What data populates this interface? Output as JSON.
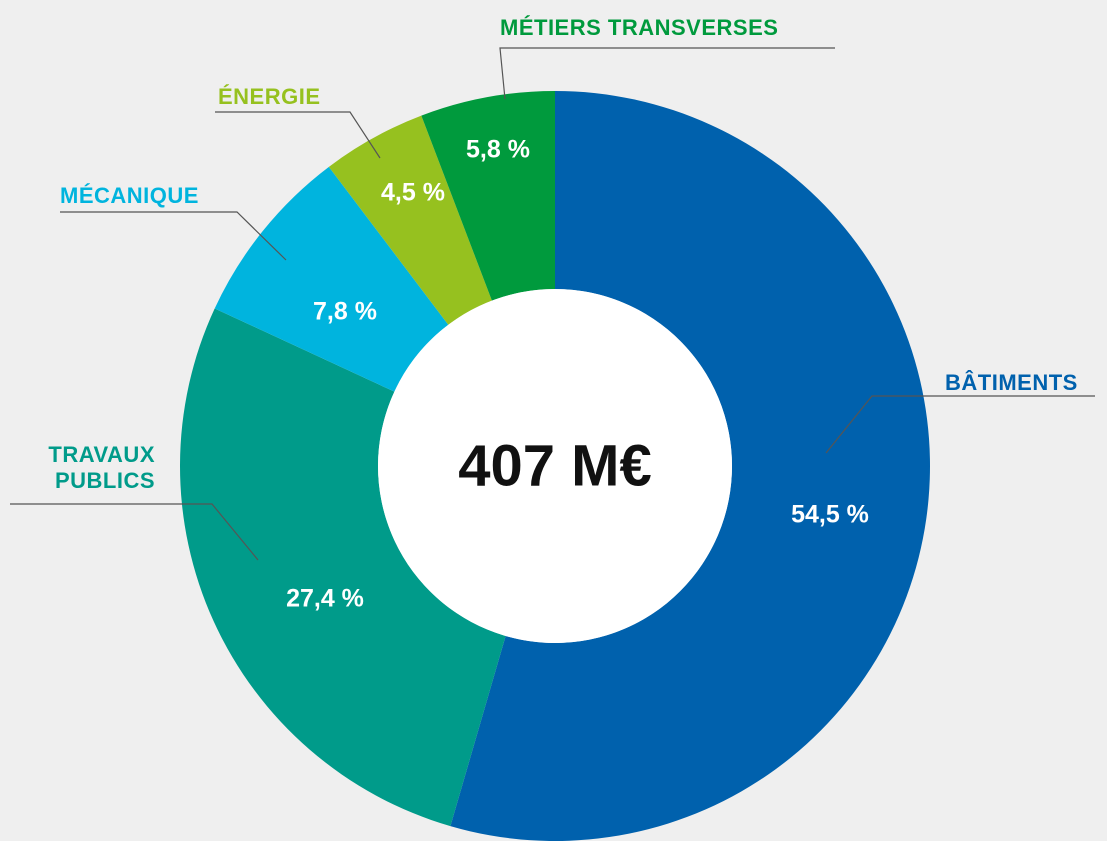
{
  "chart_data": {
    "type": "donut",
    "categories": [
      "BÂTIMENTS",
      "TRAVAUX PUBLICS",
      "MÉCANIQUE",
      "ÉNERGIE",
      "MÉTIERS TRANSVERSES"
    ],
    "values": [
      54.5,
      27.4,
      7.8,
      4.5,
      5.8
    ],
    "value_labels": [
      "54,5 %",
      "27,4 %",
      "7,8 %",
      "4,5 %",
      "5,8 %"
    ],
    "colors": [
      "#0061ad",
      "#009b8a",
      "#00b4de",
      "#96c11f",
      "#009a3d"
    ],
    "center_text": "407 M€"
  }
}
